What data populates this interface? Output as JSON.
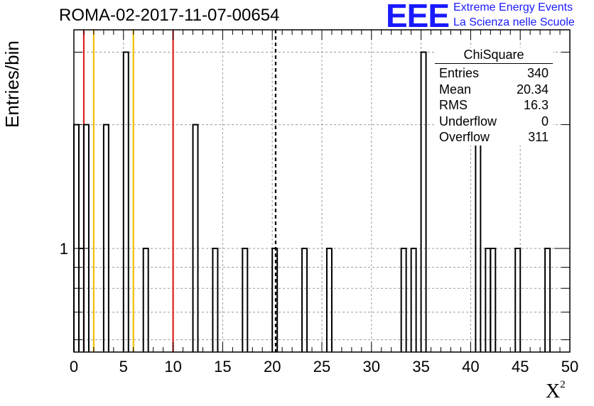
{
  "title": "ROMA-02-2017-11-07-00654",
  "logo": {
    "mark": "EEE",
    "line1": "Extreme Energy Events",
    "line2": "La Scienza nelle Scuole"
  },
  "stats_box": {
    "title": "ChiSquare",
    "rows": [
      {
        "label": "Entries",
        "value": "340"
      },
      {
        "label": "Mean",
        "value": "20.34"
      },
      {
        "label": "RMS",
        "value": "16.3"
      },
      {
        "label": "Underflow",
        "value": "0"
      },
      {
        "label": "Overflow",
        "value": "311"
      }
    ]
  },
  "chart_data": {
    "type": "bar",
    "histogram": true,
    "xlabel": "X",
    "xlabel_superscript": "2",
    "ylabel": "Entries/bin",
    "xlim": [
      0,
      50
    ],
    "ylog": true,
    "ylim": [
      0.56,
      3.4
    ],
    "bin_width": 0.5,
    "x_ticks": [
      "0",
      "5",
      "10",
      "15",
      "20",
      "25",
      "30",
      "35",
      "40",
      "45",
      "50"
    ],
    "y_ticks": [
      "1"
    ],
    "bins": [
      {
        "x": 0.0,
        "value": 2
      },
      {
        "x": 0.5,
        "value": 1
      },
      {
        "x": 1.0,
        "value": 2
      },
      {
        "x": 3.0,
        "value": 2
      },
      {
        "x": 5.0,
        "value": 3
      },
      {
        "x": 7.0,
        "value": 1
      },
      {
        "x": 12.0,
        "value": 2
      },
      {
        "x": 14.0,
        "value": 1
      },
      {
        "x": 17.0,
        "value": 1
      },
      {
        "x": 20.0,
        "value": 1
      },
      {
        "x": 23.0,
        "value": 1
      },
      {
        "x": 25.5,
        "value": 1
      },
      {
        "x": 33.0,
        "value": 1
      },
      {
        "x": 34.0,
        "value": 1
      },
      {
        "x": 35.0,
        "value": 3
      },
      {
        "x": 40.5,
        "value": 2
      },
      {
        "x": 41.5,
        "value": 1
      },
      {
        "x": 42.0,
        "value": 1
      },
      {
        "x": 44.5,
        "value": 1
      },
      {
        "x": 47.5,
        "value": 1
      }
    ],
    "reference_lines": [
      {
        "x": 1.0,
        "color": "#e02020",
        "style": "solid"
      },
      {
        "x": 2.0,
        "color": "#f0c000",
        "style": "solid"
      },
      {
        "x": 6.0,
        "color": "#f0c000",
        "style": "solid"
      },
      {
        "x": 10.0,
        "color": "#e02020",
        "style": "solid"
      },
      {
        "x": 20.34,
        "color": "#000000",
        "style": "dashed"
      }
    ],
    "grid": true
  }
}
